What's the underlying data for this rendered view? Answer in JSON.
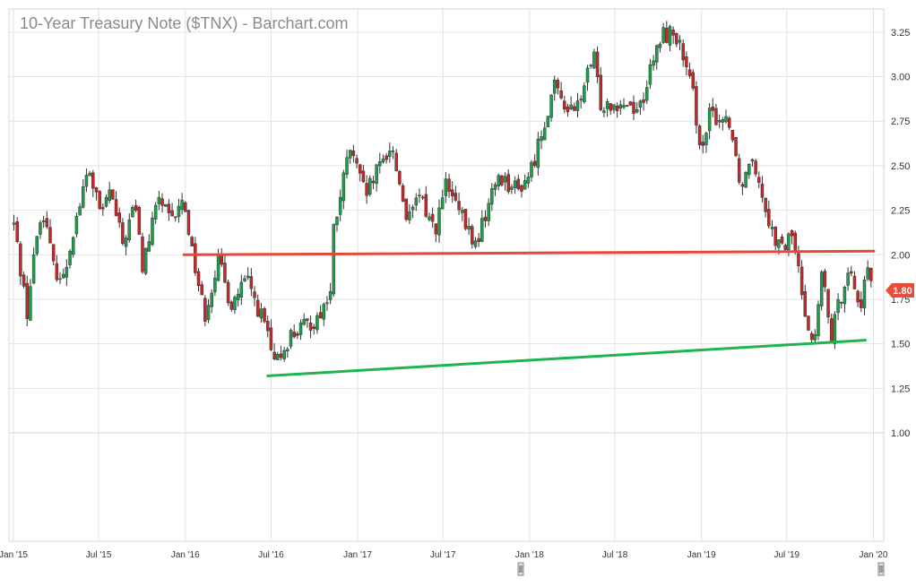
{
  "chart_data": {
    "type": "candlestick",
    "title": "10-Year Treasury Note ($TNX) - Barchart.com",
    "xlabel": "",
    "ylabel": "",
    "x_ticks": [
      "Jan '15",
      "Jul '15",
      "Jan '16",
      "Jul '16",
      "Jan '17",
      "Jul '17",
      "Jan '18",
      "Jul '18",
      "Jan '19",
      "Jul '19",
      "Jan '20"
    ],
    "y_ticks": [
      "3.25",
      "3.00",
      "2.75",
      "2.50",
      "2.25",
      "2.00",
      "1.75",
      "1.50",
      "1.25",
      "1.00"
    ],
    "ylim": [
      1.0,
      3.38
    ],
    "xlim": [
      "2015-01-01",
      "2020-01-02"
    ],
    "last_value": "1.80",
    "last_value_color": "#e74c3c",
    "up_color": "#1e9e4a",
    "down_color": "#c62828",
    "grid": true,
    "price_path": [
      [
        "2015-01-02",
        2.17
      ],
      [
        "2015-01-30",
        1.68
      ],
      [
        "2015-02-20",
        2.12
      ],
      [
        "2015-03-06",
        2.24
      ],
      [
        "2015-03-27",
        1.93
      ],
      [
        "2015-04-17",
        1.86
      ],
      [
        "2015-05-08",
        2.14
      ],
      [
        "2015-06-10",
        2.48
      ],
      [
        "2015-07-08",
        2.2
      ],
      [
        "2015-07-23",
        2.38
      ],
      [
        "2015-08-21",
        2.06
      ],
      [
        "2015-09-16",
        2.29
      ],
      [
        "2015-10-02",
        1.93
      ],
      [
        "2015-11-06",
        2.33
      ],
      [
        "2015-12-01",
        2.17
      ],
      [
        "2015-12-29",
        2.31
      ],
      [
        "2016-01-15",
        2.03
      ],
      [
        "2016-02-11",
        1.66
      ],
      [
        "2016-03-10",
        1.97
      ],
      [
        "2016-04-07",
        1.72
      ],
      [
        "2016-05-10",
        1.86
      ],
      [
        "2016-06-24",
        1.56
      ],
      [
        "2016-07-06",
        1.36
      ],
      [
        "2016-08-12",
        1.55
      ],
      [
        "2016-10-03",
        1.63
      ],
      [
        "2016-11-04",
        1.78
      ],
      [
        "2016-11-10",
        2.12
      ],
      [
        "2016-12-15",
        2.6
      ],
      [
        "2017-01-17",
        2.33
      ],
      [
        "2017-03-13",
        2.62
      ],
      [
        "2017-04-18",
        2.18
      ],
      [
        "2017-05-12",
        2.33
      ],
      [
        "2017-06-14",
        2.14
      ],
      [
        "2017-07-07",
        2.39
      ],
      [
        "2017-09-08",
        2.05
      ],
      [
        "2017-10-26",
        2.45
      ],
      [
        "2017-12-08",
        2.36
      ],
      [
        "2018-01-05",
        2.48
      ],
      [
        "2018-02-21",
        2.94
      ],
      [
        "2018-04-05",
        2.78
      ],
      [
        "2018-05-17",
        3.11
      ],
      [
        "2018-06-01",
        2.85
      ],
      [
        "2018-07-17",
        2.86
      ],
      [
        "2018-08-22",
        2.82
      ],
      [
        "2018-10-09",
        3.24
      ],
      [
        "2018-11-08",
        3.24
      ],
      [
        "2018-12-14",
        2.89
      ],
      [
        "2019-01-03",
        2.56
      ],
      [
        "2019-01-18",
        2.78
      ],
      [
        "2019-03-01",
        2.76
      ],
      [
        "2019-03-27",
        2.37
      ],
      [
        "2019-04-17",
        2.59
      ],
      [
        "2019-05-31",
        2.13
      ],
      [
        "2019-06-20",
        2.02
      ],
      [
        "2019-07-12",
        2.12
      ],
      [
        "2019-08-07",
        1.72
      ],
      [
        "2019-08-28",
        1.47
      ],
      [
        "2019-09-13",
        1.9
      ],
      [
        "2019-10-03",
        1.53
      ],
      [
        "2019-11-08",
        1.94
      ],
      [
        "2019-12-03",
        1.71
      ],
      [
        "2019-12-24",
        1.92
      ],
      [
        "2019-12-31",
        1.8
      ]
    ],
    "trendlines": [
      {
        "color": "#e5483c",
        "x1": "2015-12-29",
        "y1": 2.0,
        "x2": "2020-01-02",
        "y2": 2.02
      },
      {
        "color": "#1eb450",
        "x1": "2016-06-24",
        "y1": 1.32,
        "x2": "2019-12-15",
        "y2": 1.52
      }
    ]
  }
}
